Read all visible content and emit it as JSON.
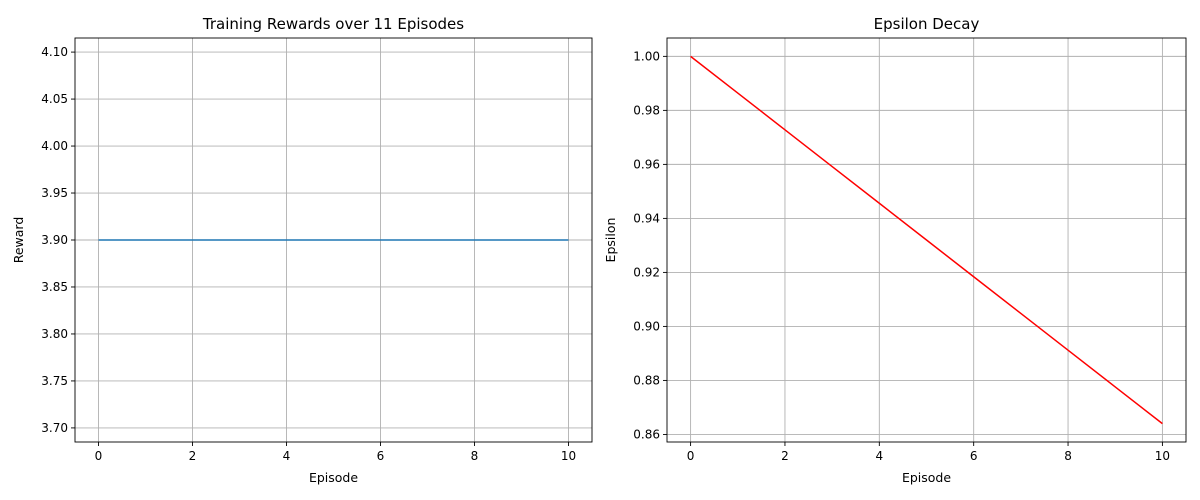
{
  "chart_data": [
    {
      "type": "line",
      "title": "Training Rewards over 11 Episodes",
      "xlabel": "Episode",
      "ylabel": "Reward",
      "x": [
        0,
        1,
        2,
        3,
        4,
        5,
        6,
        7,
        8,
        9,
        10
      ],
      "series": [
        {
          "values": [
            3.9,
            3.9,
            3.9,
            3.9,
            3.9,
            3.9,
            3.9,
            3.9,
            3.9,
            3.9,
            3.9
          ],
          "color": "#1f77b4"
        }
      ],
      "xlim": [
        -0.5,
        10.5
      ],
      "ylim": [
        3.685,
        4.115
      ],
      "xticks": [
        "0",
        "2",
        "4",
        "6",
        "8",
        "10"
      ],
      "yticks": [
        "3.70",
        "3.75",
        "3.80",
        "3.85",
        "3.90",
        "3.95",
        "4.00",
        "4.05",
        "4.10"
      ],
      "grid": true
    },
    {
      "type": "line",
      "title": "Epsilon Decay",
      "xlabel": "Episode",
      "ylabel": "Epsilon",
      "x": [
        0,
        1,
        2,
        3,
        4,
        5,
        6,
        7,
        8,
        9,
        10
      ],
      "series": [
        {
          "values": [
            1.0,
            0.9864,
            0.9728,
            0.9592,
            0.9456,
            0.932,
            0.9184,
            0.9048,
            0.8912,
            0.8776,
            0.864
          ],
          "color": "#ff0000"
        }
      ],
      "xlim": [
        -0.5,
        10.5
      ],
      "ylim": [
        0.8572,
        1.0068
      ],
      "xticks": [
        "0",
        "2",
        "4",
        "6",
        "8",
        "10"
      ],
      "yticks": [
        "0.86",
        "0.88",
        "0.90",
        "0.92",
        "0.94",
        "0.96",
        "0.98",
        "1.00"
      ],
      "grid": true
    }
  ]
}
